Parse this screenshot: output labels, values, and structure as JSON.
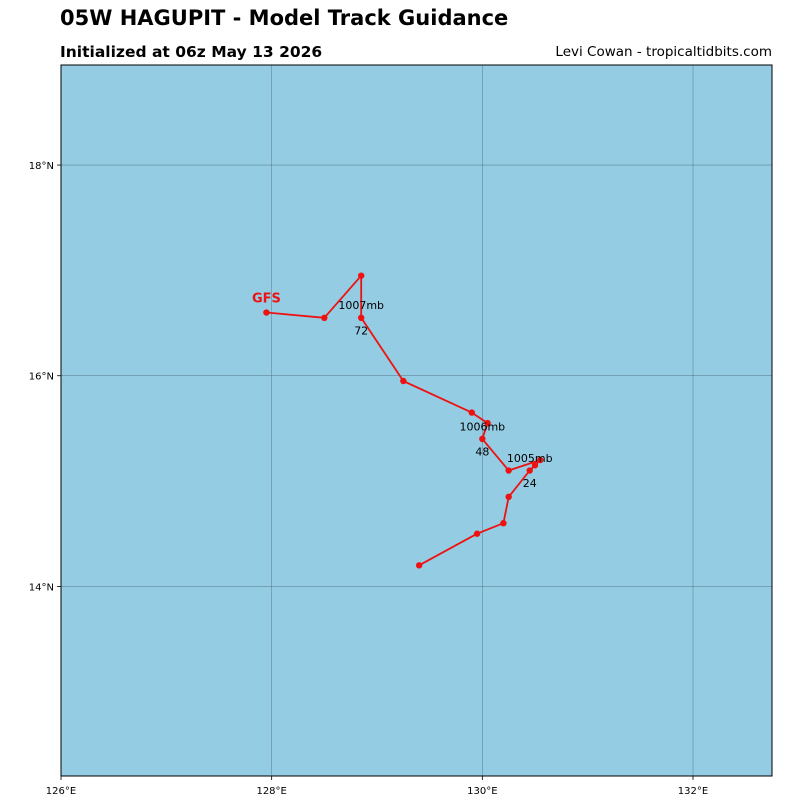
{
  "header": {
    "title": "05W HAGUPIT - Model Track Guidance",
    "subtitle": "Initialized at 06z May 13 2026",
    "credit": "Levi Cowan - tropicaltidbits.com"
  },
  "colors": {
    "ocean": "#94cde3",
    "grid": "#4a6a72",
    "track": "#ee1111",
    "label": "#ee1111"
  },
  "map_extent": {
    "lon_min": 126.0,
    "lon_max": 132.75,
    "lat_min": 12.2,
    "lat_max": 18.95
  },
  "grid": {
    "lon_ticks": [
      126,
      128,
      130,
      132
    ],
    "lon_labels": [
      "126°E",
      "128°E",
      "130°E",
      "132°E"
    ],
    "lat_ticks": [
      14,
      16,
      18
    ],
    "lat_labels": [
      "14°N",
      "16°N",
      "18°N"
    ]
  },
  "tracks": [
    {
      "model": "GFS",
      "points": [
        {
          "lon": 129.4,
          "lat": 14.2
        },
        {
          "lon": 129.95,
          "lat": 14.5
        },
        {
          "lon": 130.2,
          "lat": 14.6
        },
        {
          "lon": 130.25,
          "lat": 14.85
        },
        {
          "lon": 130.45,
          "lat": 15.1
        },
        {
          "lon": 130.5,
          "lat": 15.15
        },
        {
          "lon": 130.55,
          "lat": 15.2
        },
        {
          "lon": 130.25,
          "lat": 15.1
        },
        {
          "lon": 130.0,
          "lat": 15.4
        },
        {
          "lon": 130.05,
          "lat": 15.55
        },
        {
          "lon": 129.9,
          "lat": 15.65
        },
        {
          "lon": 129.25,
          "lat": 15.95
        },
        {
          "lon": 128.85,
          "lat": 16.55
        },
        {
          "lon": 128.85,
          "lat": 16.95
        },
        {
          "lon": 128.5,
          "lat": 16.55
        },
        {
          "lon": 127.95,
          "lat": 16.6
        }
      ],
      "annotations": [
        {
          "text": "1005mb",
          "lon": 130.45,
          "lat": 15.22
        },
        {
          "text": "24",
          "lon": 130.45,
          "lat": 14.98
        },
        {
          "text": "1006mb",
          "lon": 130.0,
          "lat": 15.52
        },
        {
          "text": "48",
          "lon": 130.0,
          "lat": 15.28
        },
        {
          "text": "1007mb",
          "lon": 128.85,
          "lat": 16.67
        },
        {
          "text": "72",
          "lon": 128.85,
          "lat": 16.43
        }
      ]
    }
  ]
}
